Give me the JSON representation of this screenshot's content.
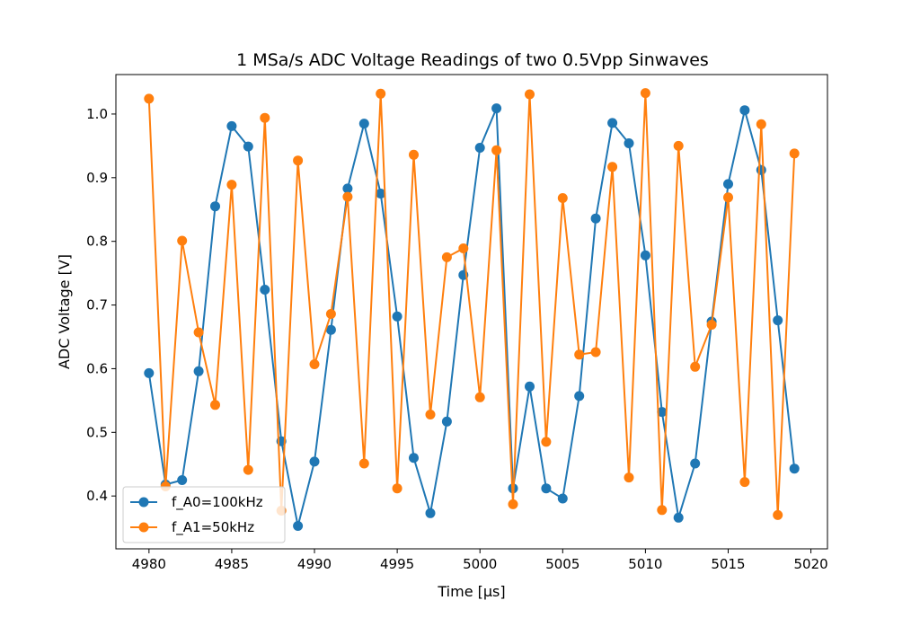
{
  "chart_data": {
    "type": "line",
    "title": "1 MSa/s ADC Voltage Readings of two 0.5Vpp Sinwaves",
    "xlabel": "Time [μs]",
    "ylabel": "ADC Voltage [V]",
    "xlim": [
      4978,
      5021
    ],
    "ylim": [
      0.317,
      1.062
    ],
    "xticks": [
      4980,
      4985,
      4990,
      4995,
      5000,
      5005,
      5010,
      5015,
      5020
    ],
    "yticks": [
      0.4,
      0.5,
      0.6,
      0.7,
      0.8,
      0.9,
      1.0
    ],
    "ytick_labels": [
      "0.4",
      "0.5",
      "0.6",
      "0.7",
      "0.8",
      "0.9",
      "1.0"
    ],
    "grid": false,
    "legend": "bottom-left",
    "x": [
      4980,
      4981,
      4982,
      4983,
      4984,
      4985,
      4986,
      4987,
      4988,
      4989,
      4990,
      4991,
      4992,
      4993,
      4994,
      4995,
      4996,
      4997,
      4998,
      4999,
      5000,
      5001,
      5002,
      5003,
      5004,
      5005,
      5006,
      5007,
      5008,
      5009,
      5010,
      5011,
      5012,
      5013,
      5014,
      5015,
      5016,
      5017,
      5018,
      5019
    ],
    "series": [
      {
        "name": "f_A0=100kHz",
        "color": "#1f77b4",
        "values": [
          0.593,
          0.418,
          0.425,
          0.596,
          0.855,
          0.981,
          0.949,
          0.724,
          0.486,
          0.353,
          0.454,
          0.661,
          0.883,
          0.985,
          0.875,
          0.682,
          0.46,
          0.373,
          0.517,
          0.747,
          0.947,
          1.009,
          0.412,
          0.572,
          0.412,
          0.396,
          0.557,
          0.836,
          0.986,
          0.954,
          0.778,
          0.532,
          0.366,
          0.451,
          0.674,
          0.89,
          1.006,
          0.912,
          0.676,
          0.443
        ]
      },
      {
        "name": "f_A1=50kHz",
        "color": "#ff7f0e",
        "values": [
          1.024,
          0.415,
          0.801,
          0.657,
          0.543,
          0.889,
          0.441,
          0.994,
          0.377,
          0.927,
          0.607,
          0.686,
          0.87,
          0.451,
          1.032,
          0.412,
          0.936,
          0.528,
          0.775,
          0.789,
          0.555,
          0.943,
          0.387,
          1.031,
          0.485,
          0.868,
          0.622,
          0.626,
          0.917,
          0.429,
          1.033,
          0.378,
          0.95,
          0.603,
          0.669,
          0.869,
          0.422,
          0.984,
          0.37,
          0.938
        ]
      }
    ]
  }
}
